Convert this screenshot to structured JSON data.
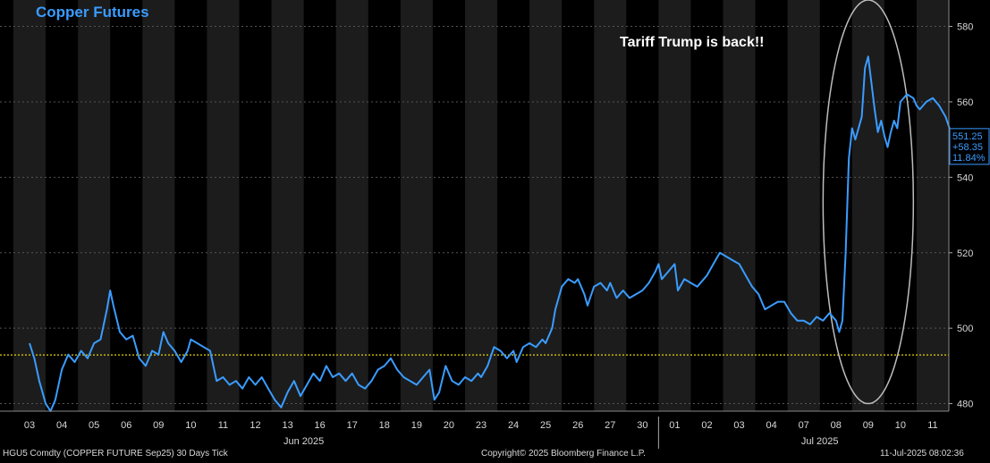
{
  "title": "Copper Futures",
  "annotation": "Tariff Trump is back!!",
  "footer": {
    "ticker": "HGU5 Comdty (COPPER FUTURE    Sep25) 30 Days  Tick",
    "copyright": "Copyright© 2025 Bloomberg Finance L.P.",
    "timestamp": "11-Jul-2025 08:02:36"
  },
  "last_value": {
    "price": "551.25",
    "change": "+58.35",
    "pct": "11.84%"
  },
  "colors": {
    "line": "#3a9cff",
    "reference": "#e8d200",
    "background": "#000000",
    "band": "#1c1c1c",
    "highlight_circle": "#bdbdbd"
  },
  "chart_data": {
    "type": "line",
    "title": "Copper Futures",
    "xlabel": "",
    "ylabel": "",
    "ylim": [
      478,
      587
    ],
    "yticks": [
      480,
      500,
      520,
      540,
      560,
      580
    ],
    "day_labels": [
      "03",
      "04",
      "05",
      "06",
      "09",
      "10",
      "11",
      "12",
      "13",
      "16",
      "17",
      "18",
      "19",
      "20",
      "23",
      "24",
      "25",
      "26",
      "27",
      "30",
      "01",
      "02",
      "03",
      "04",
      "07",
      "08",
      "09",
      "10",
      "11"
    ],
    "month_labels": [
      {
        "label": "Jun 2025",
        "after_day_index": 8
      },
      {
        "label": "Jul 2025",
        "after_day_index": 24
      }
    ],
    "reference_line": 492.9,
    "last_value": 551.25,
    "highlight": {
      "from_day_index": 24.6,
      "to_day_index": 27.4,
      "y_low": 480,
      "y_high": 587
    },
    "series": [
      {
        "values": [
          [
            0.0,
            496
          ],
          [
            0.15,
            492
          ],
          [
            0.3,
            486
          ],
          [
            0.5,
            480
          ],
          [
            0.65,
            478
          ],
          [
            0.8,
            481
          ],
          [
            1.0,
            489
          ],
          [
            1.2,
            493
          ],
          [
            1.4,
            491
          ],
          [
            1.6,
            494
          ],
          [
            1.8,
            492
          ],
          [
            2.0,
            496
          ],
          [
            2.2,
            497
          ],
          [
            2.4,
            505
          ],
          [
            2.5,
            510
          ],
          [
            2.6,
            506
          ],
          [
            2.8,
            499
          ],
          [
            3.0,
            497
          ],
          [
            3.2,
            498
          ],
          [
            3.4,
            492
          ],
          [
            3.6,
            490
          ],
          [
            3.8,
            494
          ],
          [
            4.0,
            493
          ],
          [
            4.15,
            499
          ],
          [
            4.3,
            496
          ],
          [
            4.5,
            494
          ],
          [
            4.7,
            491
          ],
          [
            4.9,
            494
          ],
          [
            5.0,
            497
          ],
          [
            5.2,
            496
          ],
          [
            5.4,
            495
          ],
          [
            5.6,
            494
          ],
          [
            5.8,
            486
          ],
          [
            6.0,
            487
          ],
          [
            6.2,
            485
          ],
          [
            6.4,
            486
          ],
          [
            6.6,
            484
          ],
          [
            6.8,
            487
          ],
          [
            7.0,
            485
          ],
          [
            7.2,
            487
          ],
          [
            7.4,
            484
          ],
          [
            7.6,
            481
          ],
          [
            7.8,
            479
          ],
          [
            8.0,
            483
          ],
          [
            8.2,
            486
          ],
          [
            8.4,
            482
          ],
          [
            8.6,
            485
          ],
          [
            8.8,
            488
          ],
          [
            9.0,
            486
          ],
          [
            9.2,
            490
          ],
          [
            9.4,
            487
          ],
          [
            9.6,
            488
          ],
          [
            9.8,
            486
          ],
          [
            10.0,
            488
          ],
          [
            10.2,
            485
          ],
          [
            10.4,
            484
          ],
          [
            10.6,
            486
          ],
          [
            10.8,
            489
          ],
          [
            11.0,
            490
          ],
          [
            11.2,
            492
          ],
          [
            11.4,
            489
          ],
          [
            11.6,
            487
          ],
          [
            11.8,
            486
          ],
          [
            12.0,
            485
          ],
          [
            12.2,
            487
          ],
          [
            12.4,
            489
          ],
          [
            12.55,
            481
          ],
          [
            12.7,
            483
          ],
          [
            12.9,
            490
          ],
          [
            13.1,
            486
          ],
          [
            13.3,
            485
          ],
          [
            13.5,
            487
          ],
          [
            13.7,
            486
          ],
          [
            13.9,
            488
          ],
          [
            14.0,
            487
          ],
          [
            14.2,
            490
          ],
          [
            14.4,
            495
          ],
          [
            14.6,
            494
          ],
          [
            14.8,
            492
          ],
          [
            15.0,
            494
          ],
          [
            15.1,
            491
          ],
          [
            15.3,
            495
          ],
          [
            15.5,
            496
          ],
          [
            15.7,
            495
          ],
          [
            15.9,
            497
          ],
          [
            16.0,
            496
          ],
          [
            16.2,
            500
          ],
          [
            16.3,
            505
          ],
          [
            16.5,
            511
          ],
          [
            16.7,
            513
          ],
          [
            16.9,
            512
          ],
          [
            17.0,
            513
          ],
          [
            17.2,
            509
          ],
          [
            17.3,
            506
          ],
          [
            17.5,
            511
          ],
          [
            17.7,
            512
          ],
          [
            17.9,
            510
          ],
          [
            18.0,
            512
          ],
          [
            18.2,
            508
          ],
          [
            18.4,
            510
          ],
          [
            18.6,
            508
          ],
          [
            18.8,
            509
          ],
          [
            19.0,
            510
          ],
          [
            19.2,
            512
          ],
          [
            19.4,
            515
          ],
          [
            19.5,
            517
          ],
          [
            19.6,
            513
          ],
          [
            19.8,
            515
          ],
          [
            20.0,
            517
          ],
          [
            20.1,
            510
          ],
          [
            20.3,
            513
          ],
          [
            20.5,
            512
          ],
          [
            20.7,
            511
          ],
          [
            20.9,
            513
          ],
          [
            21.0,
            514
          ],
          [
            21.2,
            517
          ],
          [
            21.4,
            520
          ],
          [
            21.6,
            519
          ],
          [
            21.8,
            518
          ],
          [
            22.0,
            517
          ],
          [
            22.2,
            514
          ],
          [
            22.4,
            511
          ],
          [
            22.6,
            509
          ],
          [
            22.8,
            505
          ],
          [
            23.0,
            506
          ],
          [
            23.2,
            507
          ],
          [
            23.4,
            507
          ],
          [
            23.6,
            504
          ],
          [
            23.8,
            502
          ],
          [
            24.0,
            502
          ],
          [
            24.2,
            501
          ],
          [
            24.4,
            503
          ],
          [
            24.6,
            502
          ],
          [
            24.8,
            504
          ],
          [
            25.0,
            502
          ],
          [
            25.1,
            499
          ],
          [
            25.2,
            502
          ],
          [
            25.3,
            520
          ],
          [
            25.4,
            545
          ],
          [
            25.5,
            553
          ],
          [
            25.6,
            550
          ],
          [
            25.7,
            553
          ],
          [
            25.8,
            556
          ],
          [
            25.9,
            569
          ],
          [
            26.0,
            572
          ],
          [
            26.1,
            565
          ],
          [
            26.2,
            558
          ],
          [
            26.3,
            552
          ],
          [
            26.4,
            555
          ],
          [
            26.5,
            551
          ],
          [
            26.6,
            548
          ],
          [
            26.7,
            552
          ],
          [
            26.8,
            555
          ],
          [
            26.9,
            553
          ],
          [
            27.0,
            560
          ],
          [
            27.2,
            562
          ],
          [
            27.4,
            561
          ],
          [
            27.5,
            559
          ],
          [
            27.6,
            558
          ],
          [
            27.8,
            560
          ],
          [
            28.0,
            561
          ],
          [
            28.2,
            559
          ],
          [
            28.4,
            556
          ],
          [
            28.6,
            551
          ],
          [
            28.8,
            552
          ]
        ]
      }
    ]
  }
}
